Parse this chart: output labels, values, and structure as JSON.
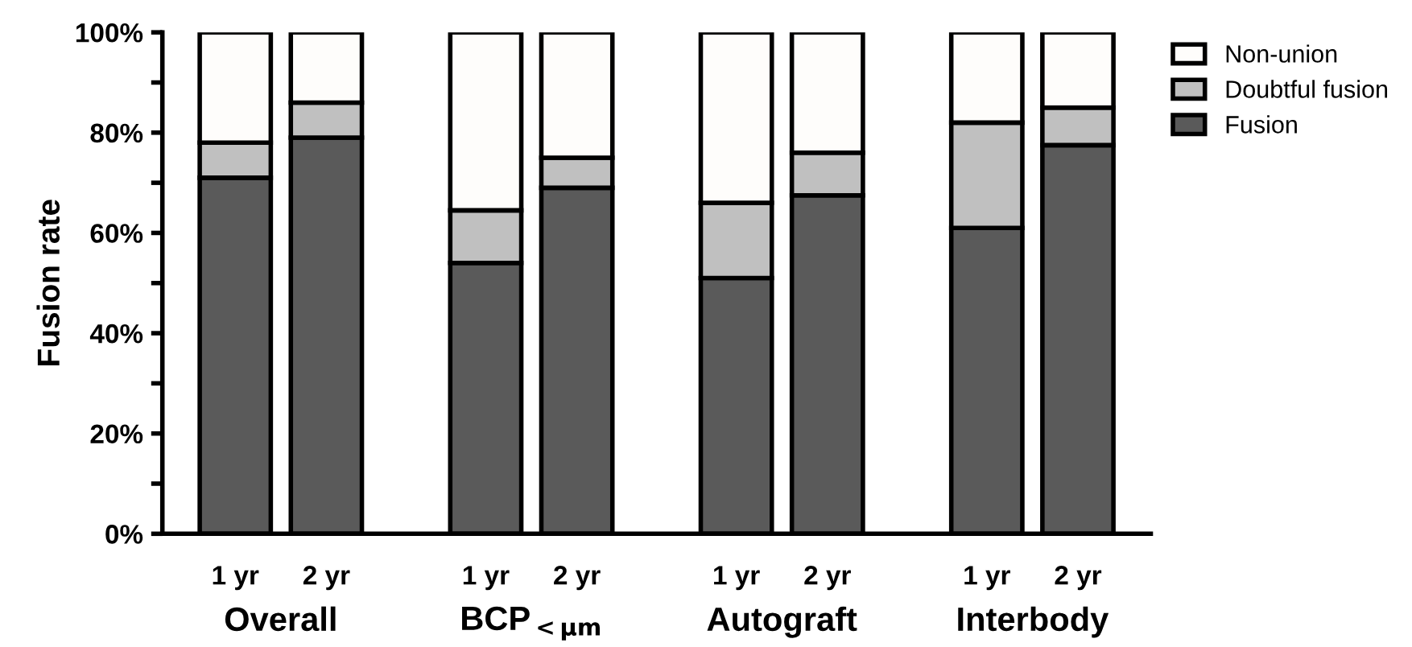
{
  "chart_data": {
    "type": "bar",
    "stacked": true,
    "ylabel": "Fusion rate",
    "categories": [
      "1 yr",
      "2 yr",
      "1 yr",
      "2 yr",
      "1 yr",
      "2 yr",
      "1 yr",
      "2 yr"
    ],
    "series": [
      {
        "name": "Fusion",
        "color": "#5a5a5a",
        "values": [
          71,
          79,
          54,
          69,
          51,
          67.5,
          61,
          77.5
        ]
      },
      {
        "name": "Doubtful fusion",
        "color": "#c0c0c0",
        "values": [
          7,
          7,
          10.5,
          6,
          15,
          8.5,
          21,
          7.5
        ]
      },
      {
        "name": "Non-union",
        "color": "#fefdfb",
        "values": [
          22,
          14,
          35.5,
          25,
          34,
          24,
          18,
          15
        ]
      }
    ],
    "annotations": [
      "Overall",
      "BCP$_{<μm}$",
      "Autograft",
      "Interbody"
    ],
    "ylim": [
      0,
      100
    ],
    "yticks": [
      {
        "value": 0,
        "label": "0%"
      },
      {
        "value": 10,
        "label": null
      },
      {
        "value": 20,
        "label": "20%"
      },
      {
        "value": 30,
        "label": null
      },
      {
        "value": 40,
        "label": "40%"
      },
      {
        "value": 50,
        "label": null
      },
      {
        "value": 60,
        "label": "60%"
      },
      {
        "value": 70,
        "label": null
      },
      {
        "value": 80,
        "label": "80%"
      },
      {
        "value": 90,
        "label": null
      },
      {
        "value": 100,
        "label": "100%"
      }
    ],
    "grid": false,
    "legend": "top right"
  }
}
